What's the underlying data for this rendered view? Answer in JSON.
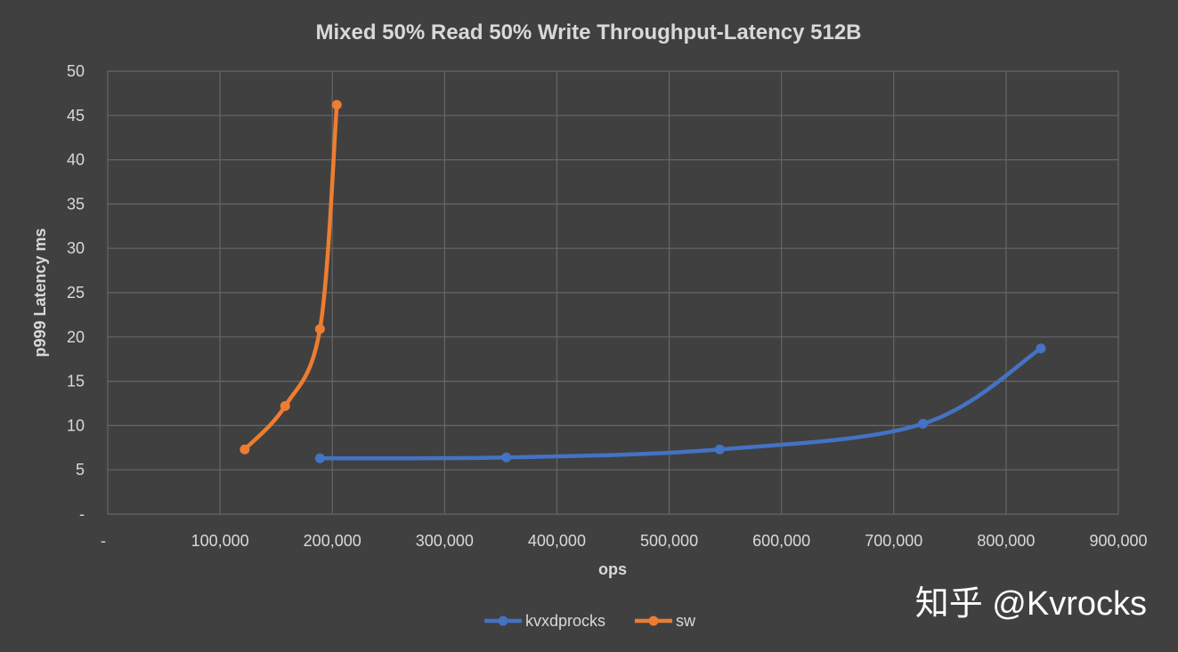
{
  "chart_data": {
    "type": "line",
    "title": "Mixed 50% Read 50% Write Throughput-Latency 512B",
    "xlabel": "ops",
    "ylabel": "p999 Latency ms",
    "xlim": [
      0,
      900000
    ],
    "ylim": [
      0,
      50
    ],
    "x_ticks": [
      {
        "value": 0,
        "label": "-"
      },
      {
        "value": 100000,
        "label": "100,000"
      },
      {
        "value": 200000,
        "label": "200,000"
      },
      {
        "value": 300000,
        "label": "300,000"
      },
      {
        "value": 400000,
        "label": "400,000"
      },
      {
        "value": 500000,
        "label": "500,000"
      },
      {
        "value": 600000,
        "label": "600,000"
      },
      {
        "value": 700000,
        "label": "700,000"
      },
      {
        "value": 800000,
        "label": "800,000"
      },
      {
        "value": 900000,
        "label": "900,000"
      }
    ],
    "y_ticks": [
      {
        "value": 0,
        "label": "-"
      },
      {
        "value": 5,
        "label": "5"
      },
      {
        "value": 10,
        "label": "10"
      },
      {
        "value": 15,
        "label": "15"
      },
      {
        "value": 20,
        "label": "20"
      },
      {
        "value": 25,
        "label": "25"
      },
      {
        "value": 30,
        "label": "30"
      },
      {
        "value": 35,
        "label": "35"
      },
      {
        "value": 40,
        "label": "40"
      },
      {
        "value": 45,
        "label": "45"
      },
      {
        "value": 50,
        "label": "50"
      }
    ],
    "grid": true,
    "legend_position": "bottom",
    "series": [
      {
        "name": "kvxdprocks",
        "color": "#4472c4",
        "points": [
          {
            "x": 189000,
            "y": 6.3
          },
          {
            "x": 355000,
            "y": 6.4
          },
          {
            "x": 545000,
            "y": 7.3
          },
          {
            "x": 726000,
            "y": 10.2
          },
          {
            "x": 831000,
            "y": 18.7
          }
        ]
      },
      {
        "name": "sw",
        "color": "#ed7d31",
        "points": [
          {
            "x": 122000,
            "y": 7.3
          },
          {
            "x": 158000,
            "y": 12.2
          },
          {
            "x": 189000,
            "y": 20.9
          },
          {
            "x": 204000,
            "y": 46.2
          }
        ]
      }
    ]
  },
  "watermark": "知乎 @Kvrocks"
}
